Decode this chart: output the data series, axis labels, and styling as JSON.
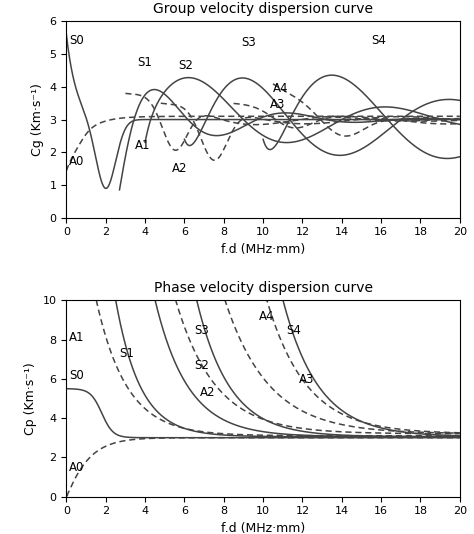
{
  "title_group": "Group velocity dispersion curve",
  "title_phase": "Phase velocity dispersion curve",
  "xlabel": "f.d (MHz·mm)",
  "ylabel_group": "Cg (Km·s⁻¹)",
  "ylabel_phase": "Cp (Km·s⁻¹)",
  "xlim": [
    0,
    20
  ],
  "ylim_group": [
    0,
    6
  ],
  "ylim_phase": [
    0,
    10
  ],
  "xticks": [
    0,
    2,
    4,
    6,
    8,
    10,
    12,
    14,
    16,
    18,
    20
  ],
  "yticks_group": [
    0,
    1,
    2,
    3,
    4,
    5,
    6
  ],
  "yticks_phase": [
    0,
    2,
    4,
    6,
    8,
    10
  ],
  "line_color": "#444444",
  "bg_color": "#ffffff",
  "fontsize": 9,
  "title_fontsize": 10,
  "label_fontsize": 8.5
}
